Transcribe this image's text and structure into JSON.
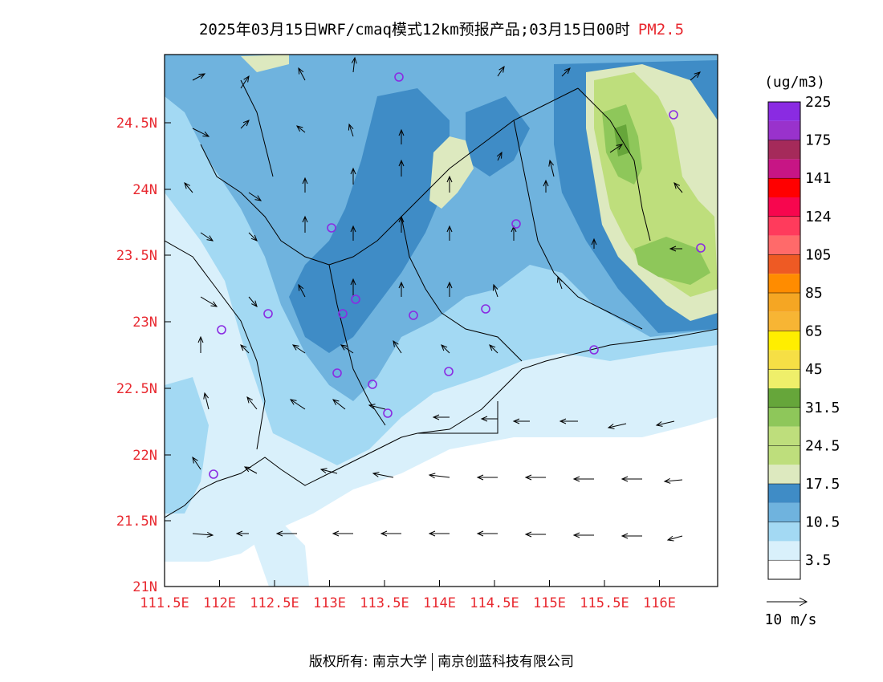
{
  "header": {
    "title": "2025年03月15日WRF/cmaq模式12km预报产品;03月15日00时",
    "pollutant": "PM2.5",
    "pollutant_color": "#e8282f"
  },
  "map": {
    "x_ticks": [
      "111.5E",
      "112E",
      "112.5E",
      "113E",
      "113.5E",
      "114E",
      "114.5E",
      "115E",
      "115.5E",
      "116E"
    ],
    "y_ticks": [
      "21N",
      "21.5N",
      "22N",
      "22.5N",
      "23N",
      "23.5N",
      "24N",
      "24.5N"
    ],
    "tick_label_color": "#e8282f",
    "fill_colors": {
      "lt3_5": "#ffffff",
      "c3_5": "#d9f0fb",
      "c10_5": "#a3d9f3",
      "c10_5b": "#6fb3de",
      "c17_5": "#3f8cc6",
      "c24_5a": "#dde9bf",
      "c24_5": "#bede7c",
      "c31_5": "#8ec75a",
      "c31_5b": "#66a63a"
    },
    "station_marker_color": "#8a2be2"
  },
  "colorbar": {
    "unit": "(ug/m3)",
    "colors": [
      "#ffffff",
      "#d9f0fb",
      "#a3d9f3",
      "#6fb3de",
      "#3f8cc6",
      "#dde9bf",
      "#bede7c",
      "#bede7c",
      "#8ec75a",
      "#66a63a",
      "#efef6a",
      "#f6df45",
      "#ffee00",
      "#f7b534",
      "#f5a623",
      "#ff8c00",
      "#ee5a24",
      "#ff6a6a",
      "#ff3b5c",
      "#f7064e",
      "#ff0000",
      "#c71585",
      "#a52a5a",
      "#9932cc",
      "#8a2be2"
    ],
    "labels": [
      "3.5",
      "10.5",
      "17.5",
      "24.5",
      "31.5",
      "45",
      "65",
      "85",
      "105",
      "124",
      "141",
      "175",
      "225"
    ]
  },
  "wind_legend": {
    "label": "10 m/s"
  },
  "footer": {
    "left": "版权所有: 南京大学",
    "right": "南京创蓝科技有限公司"
  }
}
